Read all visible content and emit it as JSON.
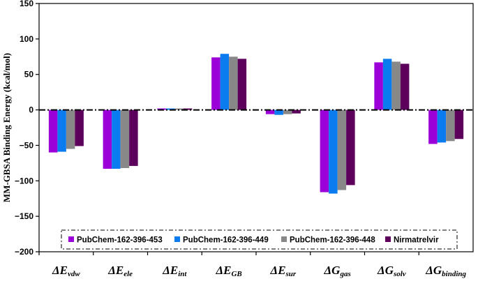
{
  "chart_data": {
    "type": "bar",
    "ylabel": "MM-GBSA Binding Energy (kcal/mol)",
    "ylim": [
      -200,
      150
    ],
    "yticks": [
      "150",
      "100",
      "50",
      "0",
      "−50",
      "−100",
      "−150",
      "−200"
    ],
    "ytick_values": [
      150,
      100,
      50,
      0,
      -50,
      -100,
      -150,
      -200
    ],
    "categories": [
      {
        "main": "ΔE",
        "sub": "vdw"
      },
      {
        "main": "ΔE",
        "sub": "ele"
      },
      {
        "main": "ΔE",
        "sub": "int"
      },
      {
        "main": "ΔE",
        "sub": "GB"
      },
      {
        "main": "ΔE",
        "sub": "sur"
      },
      {
        "main": "ΔG",
        "sub": "gas"
      },
      {
        "main": "ΔG",
        "sub": "solv"
      },
      {
        "main": "ΔG",
        "sub": "binding"
      }
    ],
    "series": [
      {
        "name": "PubChem-162-396-453",
        "color": "#9b00d9",
        "values": [
          -60,
          -83,
          2,
          74,
          -6,
          -116,
          67,
          -48
        ]
      },
      {
        "name": "PubChem-162-396-449",
        "color": "#0a7cf0",
        "values": [
          -59,
          -83,
          2,
          79,
          -7,
          -118,
          72,
          -46
        ]
      },
      {
        "name": "PubChem-162-396-448",
        "color": "#888888",
        "values": [
          -55,
          -82,
          2,
          75,
          -6,
          -113,
          68,
          -44
        ]
      },
      {
        "name": "Nirmatrelvir",
        "color": "#5c005c",
        "values": [
          -51,
          -79,
          2,
          72,
          -5,
          -106,
          65,
          -41
        ]
      }
    ],
    "zero_line": "dash-dot",
    "legend_position": "bottom",
    "grid": false
  }
}
